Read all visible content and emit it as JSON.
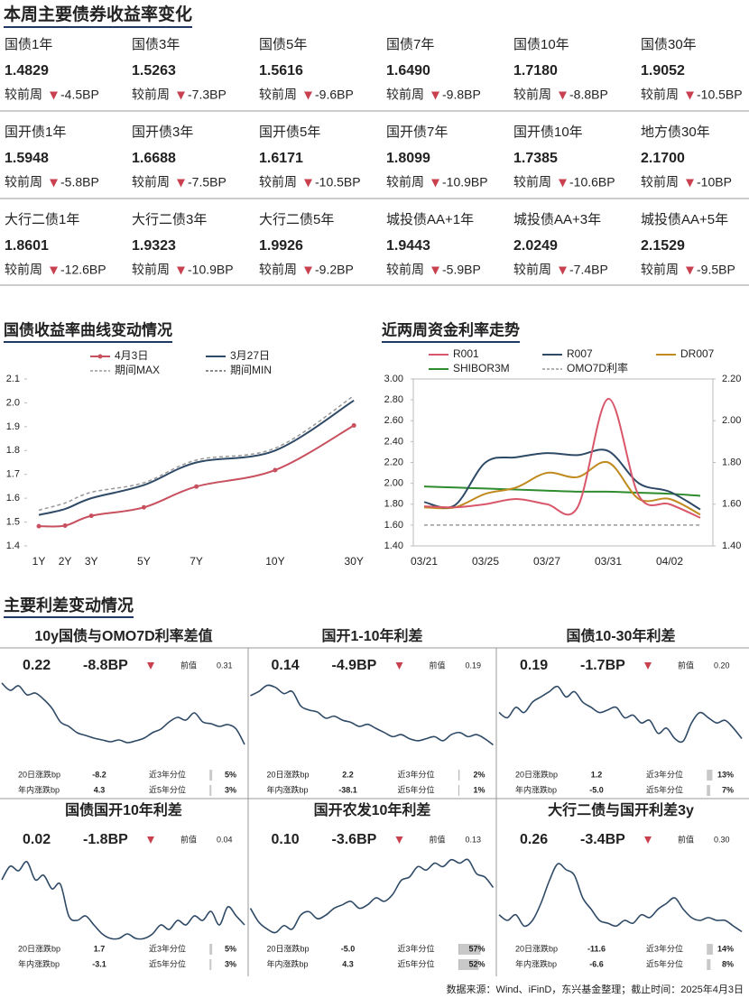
{
  "header": {
    "title": "本周主要债券收益率变化"
  },
  "yields": {
    "change_label": "较前周",
    "rows": [
      [
        {
          "name": "国债1年",
          "value": "1.4829",
          "change": "-4.5BP"
        },
        {
          "name": "国债3年",
          "value": "1.5263",
          "change": "-7.3BP"
        },
        {
          "name": "国债5年",
          "value": "1.5616",
          "change": "-9.6BP"
        },
        {
          "name": "国债7年",
          "value": "1.6490",
          "change": "-9.8BP"
        },
        {
          "name": "国债10年",
          "value": "1.7180",
          "change": "-8.8BP"
        },
        {
          "name": "国债30年",
          "value": "1.9052",
          "change": "-10.5BP"
        }
      ],
      [
        {
          "name": "国开债1年",
          "value": "1.5948",
          "change": "-5.8BP"
        },
        {
          "name": "国开债3年",
          "value": "1.6688",
          "change": "-7.5BP"
        },
        {
          "name": "国开债5年",
          "value": "1.6171",
          "change": "-10.5BP"
        },
        {
          "name": "国开债7年",
          "value": "1.8099",
          "change": "-10.9BP"
        },
        {
          "name": "国开债10年",
          "value": "1.7385",
          "change": "-10.6BP"
        },
        {
          "name": "地方债30年",
          "value": "2.1700",
          "change": "-10BP"
        }
      ],
      [
        {
          "name": "大行二债1年",
          "value": "1.8601",
          "change": "-12.6BP"
        },
        {
          "name": "大行二债3年",
          "value": "1.9323",
          "change": "-10.9BP"
        },
        {
          "name": "大行二债5年",
          "value": "1.9926",
          "change": "-9.2BP"
        },
        {
          "name": "城投债AA+1年",
          "value": "1.9443",
          "change": "-5.9BP"
        },
        {
          "name": "城投债AA+3年",
          "value": "2.0249",
          "change": "-7.4BP"
        },
        {
          "name": "城投债AA+5年",
          "value": "2.1529",
          "change": "-9.5BP"
        }
      ]
    ]
  },
  "chart_data": [
    {
      "type": "line",
      "title": "国债收益率曲线变动情况",
      "categories": [
        "1Y",
        "2Y",
        "3Y",
        "5Y",
        "7Y",
        "10Y",
        "30Y"
      ],
      "ylim": [
        1.4,
        2.1
      ],
      "yticks": [
        1.4,
        1.5,
        1.6,
        1.7,
        1.8,
        1.9,
        {
          "value": 2,
          "label": "2.0"
        },
        2.1
      ],
      "series": [
        {
          "name": "4月3日",
          "color": "#c9505e",
          "markers": true,
          "values": [
            1.4829,
            1.485,
            1.5263,
            1.5616,
            1.649,
            1.718,
            1.9052
          ]
        },
        {
          "name": "3月27日",
          "color": "#2f4a66",
          "values": [
            1.53,
            1.555,
            1.6,
            1.655,
            1.75,
            1.8,
            2.01
          ]
        },
        {
          "name": "期间MAX",
          "color": "#999999",
          "dash": true,
          "values": [
            1.55,
            1.58,
            1.625,
            1.665,
            1.76,
            1.81,
            2.03
          ]
        },
        {
          "name": "期间MIN",
          "color": "#666666",
          "dash": true,
          "values": [
            1.4829,
            1.485,
            1.5263,
            1.5616,
            1.649,
            1.718,
            1.9052
          ]
        }
      ]
    },
    {
      "type": "line",
      "title": "近两周资金利率走势",
      "categories": [
        "03/21",
        null,
        "03/25",
        null,
        "03/27",
        null,
        "03/31",
        null,
        "04/02",
        null
      ],
      "ylim": [
        1.4,
        3.0
      ],
      "yticks": [
        {
          "value": 1.4,
          "label": "1.40"
        },
        {
          "value": 1.6,
          "label": "1.60"
        },
        {
          "value": 1.8,
          "label": "1.80"
        },
        {
          "value": 2.0,
          "label": "2.00"
        },
        {
          "value": 2.2,
          "label": "2.20"
        },
        {
          "value": 2.4,
          "label": "2.40"
        },
        {
          "value": 2.6,
          "label": "2.60"
        },
        {
          "value": 2.8,
          "label": "2.80"
        },
        {
          "value": 3.0,
          "label": "3.00"
        }
      ],
      "y2lim": [
        1.4,
        2.2
      ],
      "y2ticks": [
        {
          "value": 1.4,
          "label": "1.40"
        },
        {
          "value": 1.6,
          "label": "1.60"
        },
        {
          "value": 1.8,
          "label": "1.80"
        },
        {
          "value": 2.0,
          "label": "2.00"
        },
        {
          "value": 2.2,
          "label": "2.20"
        }
      ],
      "series": [
        {
          "name": "R001",
          "color": "#d9576a",
          "values": [
            1.78,
            1.77,
            1.8,
            1.85,
            1.8,
            1.77,
            2.81,
            1.88,
            1.8,
            1.67
          ]
        },
        {
          "name": "R007",
          "color": "#2f4a66",
          "values": [
            1.82,
            1.79,
            2.2,
            2.25,
            2.29,
            2.27,
            2.31,
            2.0,
            1.92,
            1.75
          ]
        },
        {
          "name": "DR007",
          "color": "#c08a1e",
          "values": [
            1.77,
            1.77,
            1.9,
            1.96,
            2.1,
            2.06,
            2.2,
            1.85,
            1.85,
            1.7
          ]
        },
        {
          "name": "SHIBOR3M",
          "color": "#2e8b2e",
          "axis": "y2",
          "values": [
            1.685,
            1.68,
            1.675,
            1.67,
            1.665,
            1.66,
            1.66,
            1.655,
            1.65,
            1.64
          ]
        },
        {
          "name": "OMO7D利率",
          "color": "#999999",
          "dash": true,
          "axis": "y2",
          "values": [
            1.5,
            1.5,
            1.5,
            1.5,
            1.5,
            1.5,
            1.5,
            1.5,
            1.5,
            1.5
          ]
        }
      ]
    }
  ],
  "spreads": {
    "title": "主要利差变动情况",
    "prev_label": "前值",
    "labels": {
      "d20": "20日涨跌bp",
      "pct3": "近3年分位",
      "ytd": "年内涨跌bp",
      "pct5": "近5年分位"
    },
    "panels": [
      {
        "title": "10y国债与OMO7D利率差值",
        "value": "0.22",
        "change": "-8.8BP",
        "prev": "0.31",
        "d20": "-8.2",
        "pct3": {
          "value": 5,
          "label": "5%"
        },
        "ytd": "4.3",
        "pct5": {
          "value": 3,
          "label": "3%"
        },
        "ylim": [
          0.2,
          0.5
        ],
        "values": [
          0.492,
          0.46,
          0.48,
          0.44,
          0.448,
          0.42,
          0.38,
          0.32,
          0.3,
          0.272,
          0.26,
          0.248,
          0.24,
          0.232,
          0.24,
          0.228,
          0.236,
          0.248,
          0.272,
          0.288,
          0.32,
          0.34,
          0.328,
          0.36,
          0.32,
          0.312,
          0.3,
          0.308,
          0.288,
          0.22
        ]
      },
      {
        "title": "国开1-10年利差",
        "value": "0.14",
        "change": "-4.9BP",
        "prev": "0.19",
        "d20": "2.2",
        "pct3": {
          "value": 2,
          "label": "2%"
        },
        "ytd": "-38.1",
        "pct5": {
          "value": 1,
          "label": "1%"
        },
        "ylim": [
          0.12,
          0.45
        ],
        "values": [
          0.38,
          0.4,
          0.43,
          0.42,
          0.39,
          0.4,
          0.33,
          0.31,
          0.3,
          0.27,
          0.28,
          0.26,
          0.25,
          0.23,
          0.24,
          0.22,
          0.2,
          0.18,
          0.19,
          0.17,
          0.16,
          0.17,
          0.18,
          0.16,
          0.19,
          0.2,
          0.18,
          0.19,
          0.17,
          0.14
        ]
      },
      {
        "title": "国债10-30年利差",
        "value": "0.19",
        "change": "-1.7BP",
        "prev": "0.20",
        "d20": "1.2",
        "pct3": {
          "value": 13,
          "label": "13%"
        },
        "ytd": "-5.0",
        "pct5": {
          "value": 7,
          "label": "7%"
        },
        "ylim": [
          0.17,
          0.3
        ],
        "values": [
          0.24,
          0.23,
          0.25,
          0.24,
          0.26,
          0.27,
          0.28,
          0.29,
          0.27,
          0.28,
          0.26,
          0.25,
          0.24,
          0.245,
          0.25,
          0.23,
          0.235,
          0.22,
          0.225,
          0.2,
          0.21,
          0.19,
          0.185,
          0.22,
          0.24,
          0.23,
          0.22,
          0.225,
          0.21,
          0.19
        ]
      },
      {
        "title": "国债国开10年利差",
        "value": "0.02",
        "change": "-1.8BP",
        "prev": "0.04",
        "d20": "1.7",
        "pct3": {
          "value": 5,
          "label": "5%"
        },
        "ytd": "-3.1",
        "pct5": {
          "value": 3,
          "label": "3%"
        },
        "ylim": [
          0,
          0.1
        ],
        "values": [
          0.07,
          0.085,
          0.08,
          0.09,
          0.07,
          0.075,
          0.06,
          0.065,
          0.03,
          0.025,
          0.03,
          0.02,
          0.01,
          0.005,
          0.005,
          0.01,
          0.005,
          0.005,
          0.01,
          0.02,
          0.015,
          0.025,
          0.02,
          0.03,
          0.025,
          0.035,
          0.02,
          0.04,
          0.03,
          0.02
        ]
      },
      {
        "title": "国开农发10年利差",
        "value": "0.10",
        "change": "-3.6BP",
        "prev": "0.13",
        "d20": "-5.0",
        "pct3": {
          "value": 57,
          "label": "57%"
        },
        "ytd": "4.3",
        "pct5": {
          "value": 52,
          "label": "52%"
        },
        "ylim": [
          0.02,
          0.15
        ],
        "values": [
          0.07,
          0.05,
          0.04,
          0.035,
          0.045,
          0.04,
          0.06,
          0.065,
          0.055,
          0.06,
          0.07,
          0.075,
          0.08,
          0.07,
          0.075,
          0.085,
          0.08,
          0.09,
          0.11,
          0.115,
          0.13,
          0.125,
          0.135,
          0.13,
          0.14,
          0.135,
          0.14,
          0.12,
          0.115,
          0.1
        ]
      },
      {
        "title": "大行二债与国开利差3y",
        "value": "0.26",
        "change": "-3.4BP",
        "prev": "0.30",
        "d20": "-11.6",
        "pct3": {
          "value": 14,
          "label": "14%"
        },
        "ytd": "-6.6",
        "pct5": {
          "value": 8,
          "label": "8%"
        },
        "ylim": [
          0.24,
          0.4
        ],
        "values": [
          0.29,
          0.28,
          0.29,
          0.27,
          0.28,
          0.31,
          0.35,
          0.38,
          0.37,
          0.36,
          0.32,
          0.3,
          0.28,
          0.275,
          0.27,
          0.28,
          0.275,
          0.29,
          0.285,
          0.3,
          0.31,
          0.32,
          0.3,
          0.285,
          0.28,
          0.285,
          0.28,
          0.28,
          0.27,
          0.26
        ]
      }
    ]
  },
  "source": "数据来源：Wind、iFinD，东兴基金整理；截止时间：2025年4月3日"
}
